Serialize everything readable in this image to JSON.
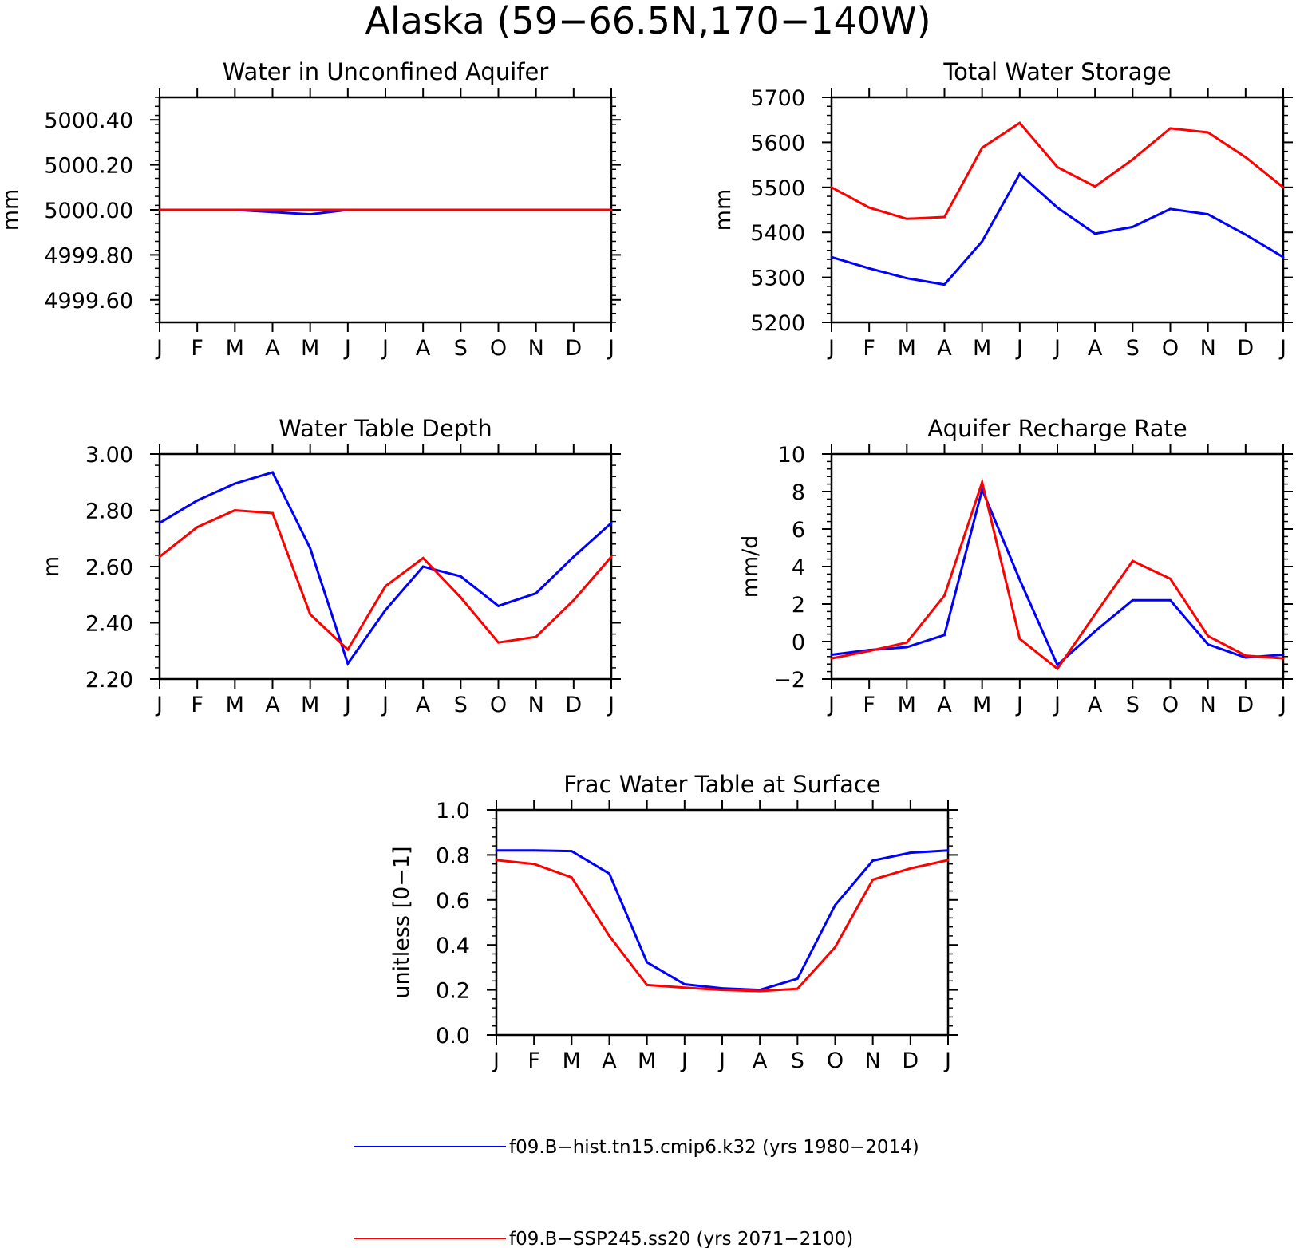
{
  "figure": {
    "title": "Alaska (59−66.5N,170−140W)"
  },
  "chart_data": [
    {
      "type": "line",
      "title": "Water in Unconfined Aquifer",
      "xlabel": "",
      "ylabel": "mm",
      "x": [
        "J",
        "F",
        "M",
        "A",
        "M",
        "J",
        "J",
        "A",
        "S",
        "O",
        "N",
        "D",
        "J"
      ],
      "ylim": [
        4999.5,
        5000.5
      ],
      "yticks": [
        4999.6,
        4999.8,
        5000.0,
        5000.2,
        5000.4
      ],
      "ytick_labels": [
        "4999.60",
        "4999.80",
        "5000.00",
        "5000.20",
        "5000.40"
      ],
      "series": [
        {
          "name": "f09.B−hist.tn15.cmip6.k32 (yrs 1980−2014)",
          "color": "#0000ff",
          "values": [
            5000.0,
            5000.0,
            5000.0,
            4999.99,
            4999.98,
            5000.0,
            5000.0,
            5000.0,
            5000.0,
            5000.0,
            5000.0,
            5000.0,
            5000.0
          ]
        },
        {
          "name": "f09.B−SSP245.ss20 (yrs 2071−2100)",
          "color": "#ff0000",
          "values": [
            5000.0,
            5000.0,
            5000.0,
            5000.0,
            5000.0,
            5000.0,
            5000.0,
            5000.0,
            5000.0,
            5000.0,
            5000.0,
            5000.0,
            5000.0
          ]
        }
      ]
    },
    {
      "type": "line",
      "title": "Total Water Storage",
      "xlabel": "",
      "ylabel": "mm",
      "x": [
        "J",
        "F",
        "M",
        "A",
        "M",
        "J",
        "J",
        "A",
        "S",
        "O",
        "N",
        "D",
        "J"
      ],
      "ylim": [
        5200,
        5700
      ],
      "yticks": [
        5200,
        5300,
        5400,
        5500,
        5600,
        5700
      ],
      "ytick_labels": [
        "5200",
        "5300",
        "5400",
        "5500",
        "5600",
        "5700"
      ],
      "series": [
        {
          "name": "f09.B−hist.tn15.cmip6.k32 (yrs 1980−2014)",
          "color": "#0000ff",
          "values": [
            5345,
            5320,
            5298,
            5284,
            5380,
            5530,
            5455,
            5397,
            5412,
            5452,
            5440,
            5395,
            5345
          ]
        },
        {
          "name": "f09.B−SSP245.ss20 (yrs 2071−2100)",
          "color": "#ff0000",
          "values": [
            5500,
            5455,
            5430,
            5434,
            5588,
            5643,
            5545,
            5502,
            5562,
            5631,
            5622,
            5567,
            5500
          ]
        }
      ]
    },
    {
      "type": "line",
      "title": "Water Table Depth",
      "xlabel": "",
      "ylabel": "m",
      "x": [
        "J",
        "F",
        "M",
        "A",
        "M",
        "J",
        "J",
        "A",
        "S",
        "O",
        "N",
        "D",
        "J"
      ],
      "ylim": [
        2.2,
        3.0
      ],
      "yticks": [
        2.2,
        2.4,
        2.6,
        2.8,
        3.0
      ],
      "ytick_labels": [
        "2.20",
        "2.40",
        "2.60",
        "2.80",
        "3.00"
      ],
      "series": [
        {
          "name": "f09.B−hist.tn15.cmip6.k32 (yrs 1980−2014)",
          "color": "#0000ff",
          "values": [
            2.755,
            2.835,
            2.895,
            2.935,
            2.665,
            2.255,
            2.445,
            2.6,
            2.565,
            2.46,
            2.505,
            2.635,
            2.755
          ]
        },
        {
          "name": "f09.B−SSP245.ss20 (yrs 2071−2100)",
          "color": "#ff0000",
          "values": [
            2.635,
            2.74,
            2.8,
            2.79,
            2.43,
            2.305,
            2.53,
            2.63,
            2.49,
            2.33,
            2.35,
            2.48,
            2.635
          ]
        }
      ]
    },
    {
      "type": "line",
      "title": "Aquifer Recharge Rate",
      "xlabel": "",
      "ylabel": "mm/d",
      "x": [
        "J",
        "F",
        "M",
        "A",
        "M",
        "J",
        "J",
        "A",
        "S",
        "O",
        "N",
        "D",
        "J"
      ],
      "ylim": [
        -2,
        10
      ],
      "yticks": [
        -2,
        0,
        2,
        4,
        6,
        8,
        10
      ],
      "ytick_labels": [
        "−2",
        "0",
        "2",
        "4",
        "6",
        "8",
        "10"
      ],
      "series": [
        {
          "name": "f09.B−hist.tn15.cmip6.k32 (yrs 1980−2014)",
          "color": "#0000ff",
          "values": [
            -0.7,
            -0.45,
            -0.3,
            0.35,
            8.1,
            3.3,
            -1.25,
            0.55,
            2.2,
            2.2,
            -0.15,
            -0.85,
            -0.7
          ]
        },
        {
          "name": "f09.B−SSP245.ss20 (yrs 2071−2100)",
          "color": "#ff0000",
          "values": [
            -0.9,
            -0.5,
            -0.05,
            2.45,
            8.5,
            0.15,
            -1.45,
            1.45,
            4.3,
            3.35,
            0.3,
            -0.75,
            -0.9
          ]
        }
      ]
    },
    {
      "type": "line",
      "title": "Frac Water Table at Surface",
      "xlabel": "",
      "ylabel": "unitless [0−1]",
      "x": [
        "J",
        "F",
        "M",
        "A",
        "M",
        "J",
        "J",
        "A",
        "S",
        "O",
        "N",
        "D",
        "J"
      ],
      "ylim": [
        0.0,
        1.0
      ],
      "yticks": [
        0.0,
        0.2,
        0.4,
        0.6,
        0.8,
        1.0
      ],
      "ytick_labels": [
        "0.0",
        "0.2",
        "0.4",
        "0.6",
        "0.8",
        "1.0"
      ],
      "series": [
        {
          "name": "f09.B−hist.tn15.cmip6.k32 (yrs 1980−2014)",
          "color": "#0000ff",
          "values": [
            0.82,
            0.82,
            0.817,
            0.717,
            0.323,
            0.225,
            0.207,
            0.2,
            0.25,
            0.577,
            0.775,
            0.81,
            0.82
          ]
        },
        {
          "name": "f09.B−SSP245.ss20 (yrs 2071−2100)",
          "color": "#ff0000",
          "values": [
            0.777,
            0.76,
            0.7,
            0.44,
            0.222,
            0.21,
            0.2,
            0.195,
            0.205,
            0.39,
            0.69,
            0.74,
            0.777
          ]
        }
      ]
    }
  ],
  "legend": {
    "placement": "bottom",
    "items": [
      {
        "label": "f09.B−hist.tn15.cmip6.k32 (yrs 1980−2014)",
        "color": "#0000ff"
      },
      {
        "label": "f09.B−SSP245.ss20 (yrs 2071−2100)",
        "color": "#ff0000"
      }
    ]
  }
}
